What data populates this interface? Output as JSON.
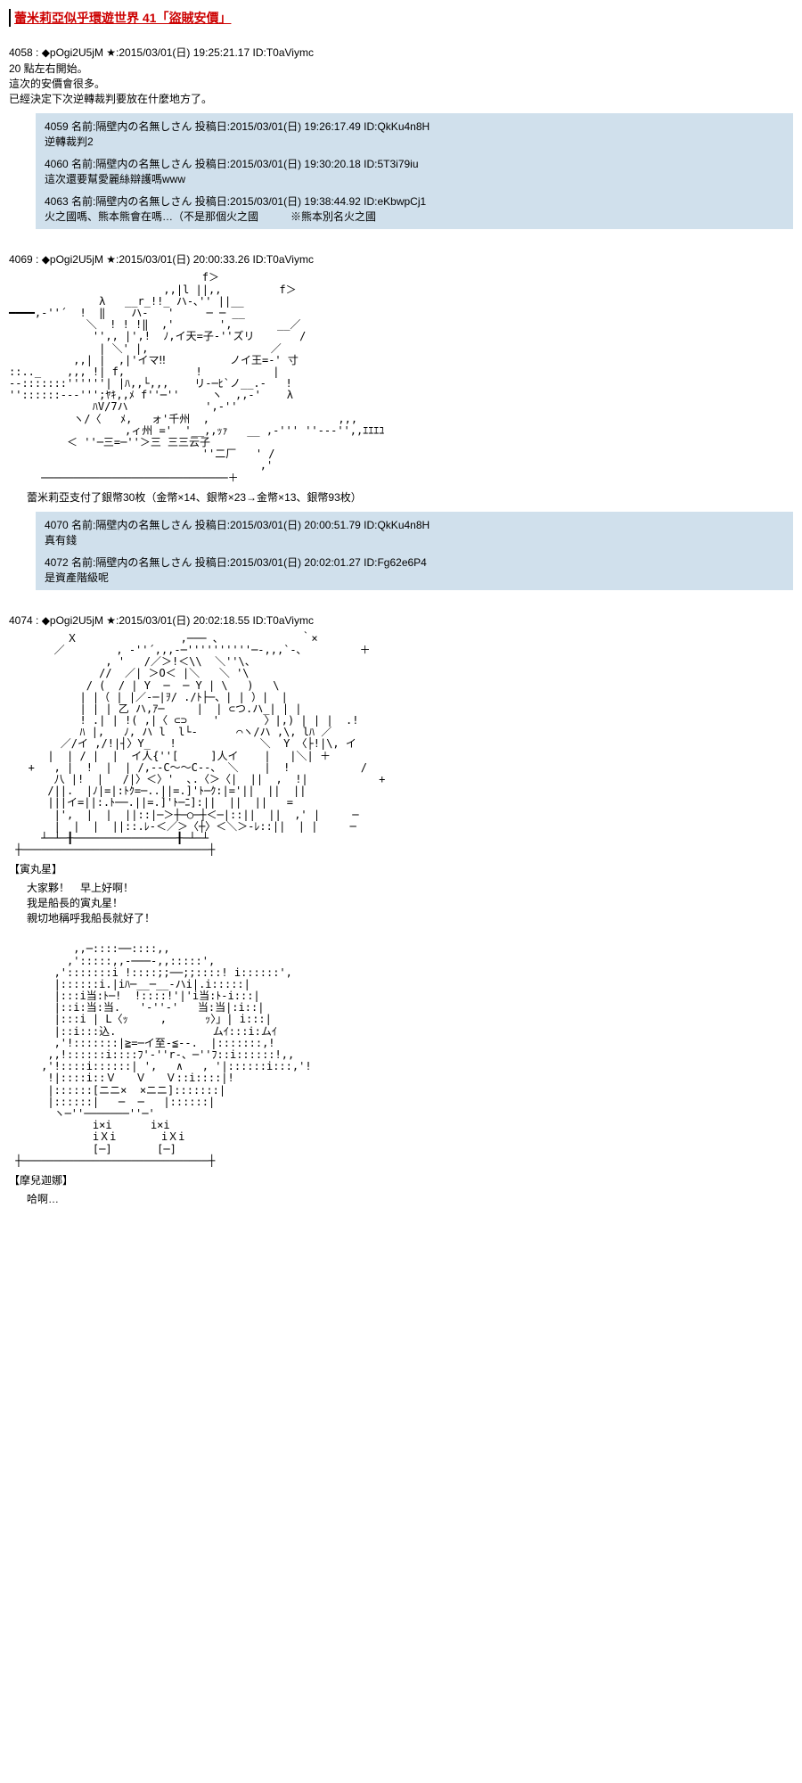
{
  "title": "蕾米莉亞似乎環遊世界 41「盜賊安價」",
  "posts": [
    {
      "id": "4058",
      "author": "◆pOgi2U5jM ★",
      "date": "2015/03/01(日) 19:25:21.17",
      "uid": "ID:T0aViymc",
      "body": "20 點左右開始。\n這次的安價會很多。\n已經決定下次逆轉裁判要放在什麼地方了。",
      "replies": [
        {
          "id": "4059",
          "name": "隔壁内の名無しさん",
          "date": "2015/03/01(日) 19:26:17.49",
          "uid": "ID:QkKu4n8H",
          "body": "逆轉裁判2"
        },
        {
          "id": "4060",
          "name": "隔壁内の名無しさん",
          "date": "2015/03/01(日) 19:30:20.18",
          "uid": "ID:5T3i79iu",
          "body": "這次還要幫愛麗絲辯護嗎www"
        },
        {
          "id": "4063",
          "name": "隔壁内の名無しさん",
          "date": "2015/03/01(日) 19:38:44.92",
          "uid": "ID:eKbwpCj1",
          "body": "火之國嗎、熊本熊會在嗎…（不是那個火之國　　　※熊本別名火之國"
        }
      ]
    },
    {
      "id": "4069",
      "author": "◆pOgi2U5jM ★",
      "date": "2015/03/01(日) 20:00:33.26",
      "uid": "ID:T0aViymc",
      "aa": "                              f＞\n                        ,,|l ||,,         f＞\n              λ   __r_!!_ ハ-､'' ||__\n━━━━,-''´  !  ‖    ハ-   '     ─ ─ __\n            ＼  ! ! !‖  ,'       ',       __／\n             '',, |',!  ﾉ,イ天=子-''ズリ       /\n              | ＼' |,                   ／\n          ,,| |  ,|'イマ‼          ノイ王=-' 寸\n::.._    ,,, !| f,           !           |\n--:::::::''''''| |ﾊ,,└,,,    リ-─ﾋ`ノ__.-   !\n''::::::---''';ﾔｷ,,ﾒ f''─''     ヽ  ,,-'    λ\n             ﾊV/7ハ            ',-''\n          ヽ/〈   ﾒ,   ォ'千州  ,                    ,,,\n                  ,ィ州 ='  '__,,ｯｧ   __ ,-''' ''---'',,ｴｴｴﾕ\n         ＜ ''─三=─''＞三 三三云子\n                              ''二厂   ' /\n                                       ,'\n     ─────────────────────────────＋",
      "after_aa": "蕾米莉亞支付了銀幣30枚（金幣×14、銀幣×23→金幣×13、銀幣93枚）",
      "replies": [
        {
          "id": "4070",
          "name": "隔壁内の名無しさん",
          "date": "2015/03/01(日) 20:00:51.79",
          "uid": "ID:QkKu4n8H",
          "body": "真有錢"
        },
        {
          "id": "4072",
          "name": "隔壁内の名無しさん",
          "date": "2015/03/01(日) 20:02:01.27",
          "uid": "ID:Fg62e6P4",
          "body": "是資產階級呢"
        }
      ]
    },
    {
      "id": "4074",
      "author": "◆pOgi2U5jM ★",
      "date": "2015/03/01(日) 20:02:18.55",
      "uid": "ID:T0aViymc",
      "aa": "         Ｘ                ,─── 、            ｀×\n       ／        , -''´,,,-─''''''''''─-,,,`-､         ＋\n               , '   /／＞!＜\\\\  ＼''\\、\n              //  ／| ＞O＜ |＼   ＼ '\\\n            / (  / | Y  ─  ─ Y | \\   )   \\\n           | |（ | |／-─|ｦ/ ./ﾄ├─、| | ）|  |\n           | | | 乙 ハ,ｱ─     |  | ⊂つ.ハ_| | |\n           ! .| | !( ,|〈 ⊂⊃    '       〉|,) | | |  .!\n           ﾊ |,   ﾉ, ハ l  l└-      ⌒ヽ/ハ ,\\, lﾊ ／\n        ／/イ ,/!|┤〉Y_   !             ＼  Y 〈├!|\\, イ\n      |  | / |  |  イ人{''[     ]人イ    |   |＼| ＋\n   +   , |  !  |  | /,--C～～C--、 ＼    |  !           /\n       八 |!  |   /|〉＜〉'  ､.〈＞〈|  ||  ,  !|           +\n      /||.  |ﾉ|=|:ﾄｸ=─..||=.]'ﾄ─ｸ:|='||  ||  ||\n      |||イ=||:.ﾄ──.||=.]'ﾄ─ﾆ]:||  ||  ||   =\n       |',  |  |  ||::|─＞┼─○─┼＜─|::||  ||  ,' |     ─\n       |  |  |  ||::.ﾚ-＜／＞〈┼〉＜＼＞-ﾚ::||  | |     ─\n     ┴─┴─╂────────────────╂─┴─┴\n ┼─────────────────────────────┼",
      "name_label": "【寅丸星】",
      "dialogue": "大家夥！　早上好啊！\n我是船長的寅丸星！\n親切地稱呼我船長就好了！",
      "aa2": "          ,,─::::──::::,,\n         ,':::::,,-───-,,:::::',\n       ,':::::::i !::::;;──;;::::! i::::::',\n       |::::::i.|iﾊ─__─__-ハi|.i:::::|\n       |:::i当:ﾄ─!  !::::!'|'i当:ﾄ-i:::|\n       |::i:当:当.   '-''-'   当:当|:i::|\n       |:::i | L〈ｯ     ,      ｯ〉」| i:::|\n       |::i:::込.               ムｲ:::i:ムｲ\n       ,'!:::::::|≧=─イ至-≦--.  |:::::::,!\n      ,,!::::::i::::ﾌ'-''r-、─''ﾌ::i::::::!,,\n     ,'!::::i::::::| ',   ∧   , '|::::::i:::,'!\n      !|::::i::Ｖ   Ｖ   Ｖ::i::::|!\n      |::::::[ニニ×  ×ニニ]:::::::|\n      |::::::|   ─  ─   |::::::|\n       ヽ─''───────''─'\n             i×i      i×i\n             iＸi       iＸi\n             [─]       [─]\n ┼─────────────────────────────┼",
      "name_label2": "【摩兒迦娜】",
      "dialogue2": "哈啊…"
    }
  ]
}
